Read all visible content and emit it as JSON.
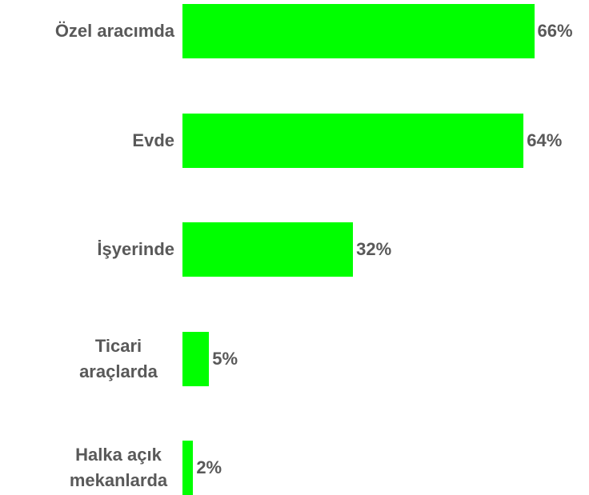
{
  "chart_data": {
    "type": "bar",
    "orientation": "horizontal",
    "categories": [
      "Özel aracımda",
      "Evde",
      "İşyerinde",
      "Ticari araçlarda",
      "Halka açık mekanlarda"
    ],
    "values": [
      66,
      64,
      32,
      5,
      2
    ],
    "value_labels": [
      "66%",
      "64%",
      "32%",
      "5%",
      "2%"
    ],
    "color": "#00ff00"
  }
}
